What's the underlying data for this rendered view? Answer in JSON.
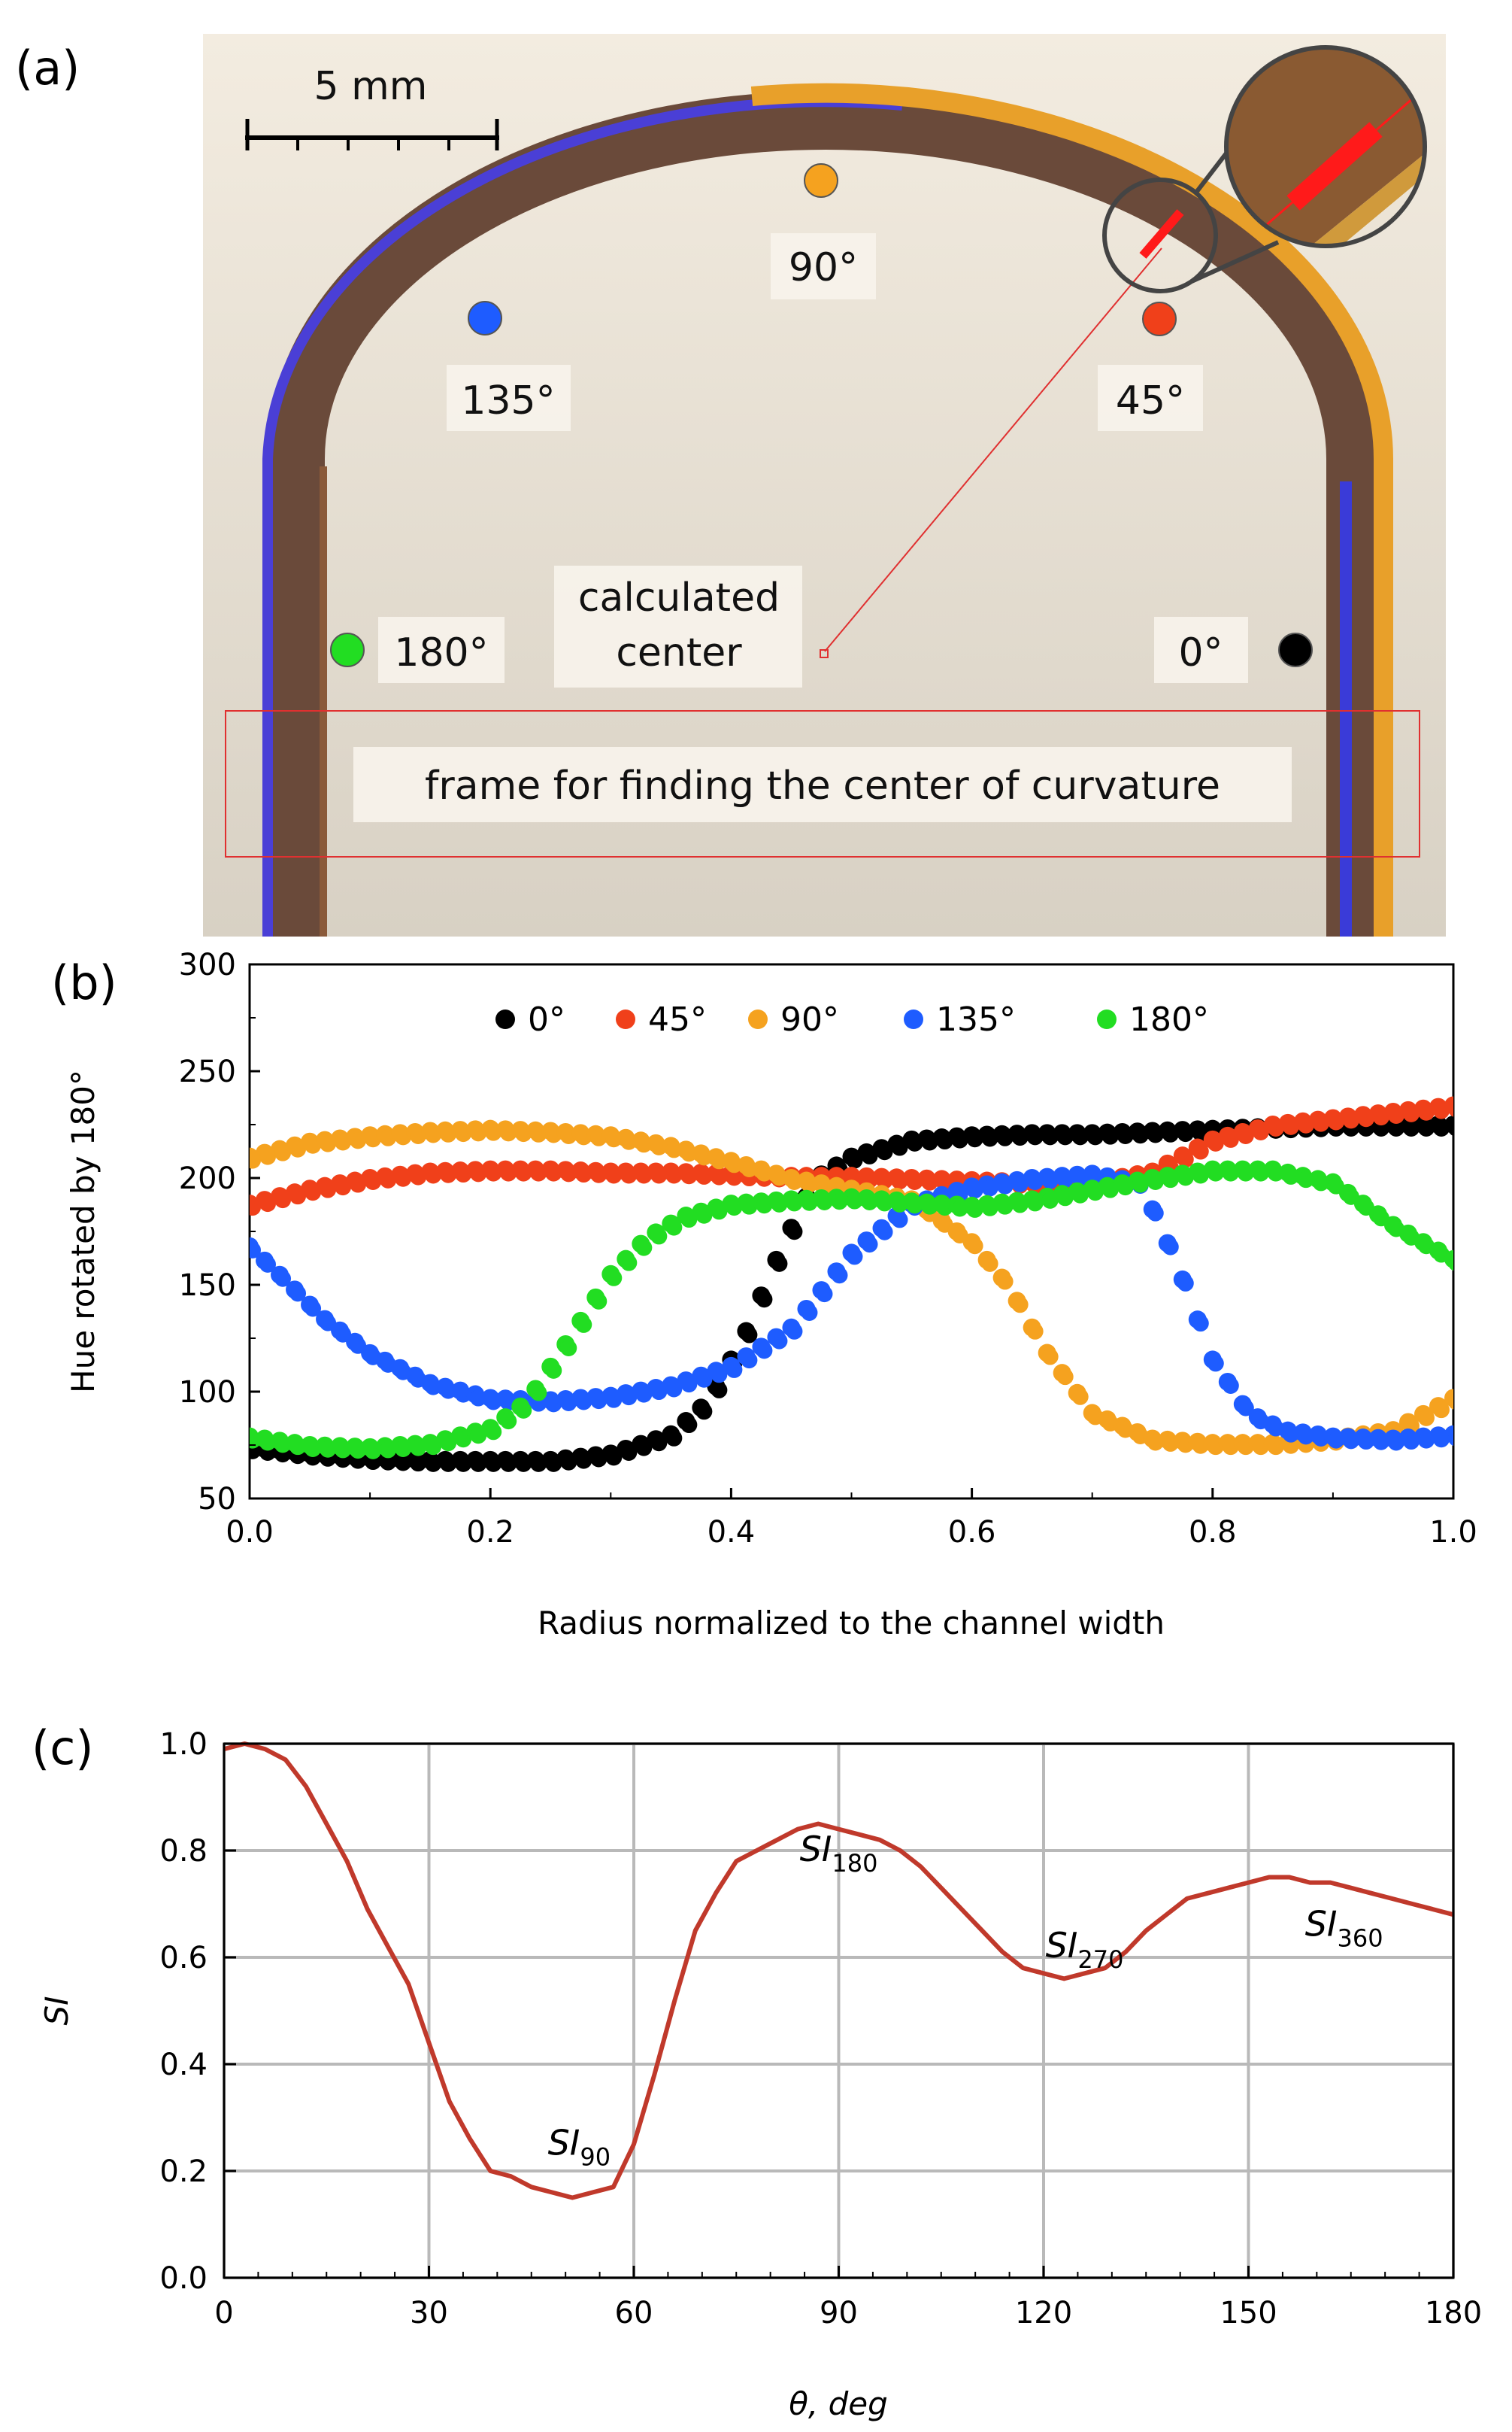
{
  "figure": {
    "panel_a": {
      "letter": "(a)",
      "scale_bar_label": "5 mm",
      "markers": [
        {
          "label": "0°",
          "color": "#000000"
        },
        {
          "label": "45°",
          "color": "#f0401a"
        },
        {
          "label": "90°",
          "color": "#f5a21f"
        },
        {
          "label": "135°",
          "color": "#1e5cff"
        },
        {
          "label": "180°",
          "color": "#22dd22"
        }
      ],
      "center_label_line1": "calculated",
      "center_label_line2": "center",
      "frame_label": "frame for finding the center of curvature"
    },
    "panel_b": {
      "letter": "(b)"
    },
    "panel_c": {
      "letter": "(c)"
    }
  },
  "chart_data": [
    {
      "id": "b",
      "type": "scatter",
      "title": "",
      "xlabel": "Radius normalized to the channel width",
      "ylabel": "Hue rotated by 180°",
      "xlim": [
        0.0,
        1.0
      ],
      "ylim": [
        50,
        300
      ],
      "xticks": [
        "0.0",
        "0.2",
        "0.4",
        "0.6",
        "0.8",
        "1.0"
      ],
      "yticks": [
        "50",
        "100",
        "150",
        "200",
        "250",
        "300"
      ],
      "grid": false,
      "legend_position": "top",
      "series": [
        {
          "name": "0°",
          "color": "#000000",
          "x": [
            0.0,
            0.05,
            0.1,
            0.15,
            0.2,
            0.25,
            0.3,
            0.35,
            0.38,
            0.41,
            0.44,
            0.47,
            0.5,
            0.55,
            0.6,
            0.65,
            0.7,
            0.75,
            0.8,
            0.85,
            0.9,
            0.95,
            1.0
          ],
          "y": [
            74,
            71,
            69,
            68,
            68,
            68,
            71,
            80,
            95,
            125,
            165,
            200,
            210,
            218,
            220,
            221,
            221,
            222,
            223,
            224,
            225,
            225,
            225
          ]
        },
        {
          "name": "45°",
          "color": "#f0401a",
          "x": [
            0.0,
            0.05,
            0.1,
            0.15,
            0.2,
            0.25,
            0.3,
            0.35,
            0.4,
            0.45,
            0.5,
            0.55,
            0.6,
            0.65,
            0.7,
            0.75,
            0.8,
            0.85,
            0.9,
            0.95,
            1.0
          ],
          "y": [
            188,
            195,
            200,
            203,
            204,
            204,
            203,
            203,
            202,
            201,
            201,
            200,
            199,
            198,
            198,
            203,
            218,
            225,
            228,
            231,
            234
          ]
        },
        {
          "name": "90°",
          "color": "#f5a21f",
          "x": [
            0.0,
            0.05,
            0.1,
            0.15,
            0.2,
            0.25,
            0.3,
            0.35,
            0.4,
            0.45,
            0.5,
            0.55,
            0.6,
            0.63,
            0.66,
            0.7,
            0.75,
            0.8,
            0.85,
            0.9,
            0.95,
            1.0
          ],
          "y": [
            210,
            217,
            220,
            222,
            223,
            222,
            220,
            215,
            208,
            200,
            195,
            190,
            170,
            150,
            120,
            90,
            78,
            76,
            76,
            78,
            82,
            97
          ]
        },
        {
          "name": "135°",
          "color": "#1e5cff",
          "x": [
            0.0,
            0.03,
            0.06,
            0.1,
            0.15,
            0.2,
            0.25,
            0.3,
            0.35,
            0.4,
            0.45,
            0.5,
            0.55,
            0.6,
            0.65,
            0.7,
            0.74,
            0.77,
            0.8,
            0.83,
            0.86,
            0.9,
            0.95,
            1.0
          ],
          "y": [
            168,
            152,
            135,
            118,
            104,
            97,
            96,
            98,
            103,
            112,
            130,
            165,
            188,
            196,
            200,
            202,
            198,
            160,
            115,
            90,
            82,
            79,
            78,
            80
          ]
        },
        {
          "name": "180°",
          "color": "#22dd22",
          "x": [
            0.0,
            0.05,
            0.1,
            0.15,
            0.2,
            0.23,
            0.26,
            0.3,
            0.33,
            0.36,
            0.4,
            0.45,
            0.5,
            0.55,
            0.6,
            0.65,
            0.7,
            0.75,
            0.8,
            0.85,
            0.9,
            0.95,
            1.0
          ],
          "y": [
            79,
            75,
            74,
            76,
            83,
            95,
            120,
            155,
            172,
            182,
            188,
            190,
            191,
            189,
            187,
            190,
            195,
            200,
            204,
            204,
            198,
            178,
            162
          ]
        }
      ]
    },
    {
      "id": "c",
      "type": "line",
      "title": "",
      "xlabel": "θ, deg",
      "ylabel": "SI",
      "xlim": [
        0,
        180
      ],
      "ylim": [
        0.0,
        1.0
      ],
      "xticks": [
        "0",
        "30",
        "60",
        "90",
        "120",
        "150",
        "180"
      ],
      "yticks": [
        "0.0",
        "0.2",
        "0.4",
        "0.6",
        "0.8",
        "1.0"
      ],
      "grid": true,
      "series": [
        {
          "name": "SI",
          "color": "#c0392b",
          "x": [
            0,
            3,
            6,
            9,
            12,
            15,
            18,
            21,
            24,
            27,
            30,
            33,
            36,
            39,
            42,
            45,
            48,
            51,
            54,
            57,
            60,
            63,
            66,
            69,
            72,
            75,
            78,
            81,
            84,
            87,
            90,
            93,
            96,
            99,
            102,
            105,
            108,
            111,
            114,
            117,
            120,
            123,
            126,
            129,
            132,
            135,
            138,
            141,
            144,
            147,
            150,
            153,
            156,
            159,
            162,
            165,
            168,
            171,
            174,
            177,
            180
          ],
          "y": [
            0.99,
            1.0,
            0.99,
            0.97,
            0.92,
            0.85,
            0.78,
            0.69,
            0.62,
            0.55,
            0.44,
            0.33,
            0.26,
            0.2,
            0.19,
            0.17,
            0.16,
            0.15,
            0.16,
            0.17,
            0.25,
            0.38,
            0.52,
            0.65,
            0.72,
            0.78,
            0.8,
            0.82,
            0.84,
            0.85,
            0.84,
            0.83,
            0.82,
            0.8,
            0.77,
            0.73,
            0.69,
            0.65,
            0.61,
            0.58,
            0.57,
            0.56,
            0.57,
            0.58,
            0.61,
            0.65,
            0.68,
            0.71,
            0.72,
            0.73,
            0.74,
            0.75,
            0.75,
            0.74,
            0.74,
            0.73,
            0.72,
            0.71,
            0.7,
            0.69,
            0.68
          ]
        }
      ],
      "annotations": [
        {
          "text": "SI",
          "sub": "90",
          "x": 52,
          "y": 0.23
        },
        {
          "text": "SI",
          "sub": "180",
          "x": 90,
          "y": 0.78
        },
        {
          "text": "SI",
          "sub": "270",
          "x": 126,
          "y": 0.6
        },
        {
          "text": "SI",
          "sub": "360",
          "x": 164,
          "y": 0.64
        }
      ]
    }
  ]
}
